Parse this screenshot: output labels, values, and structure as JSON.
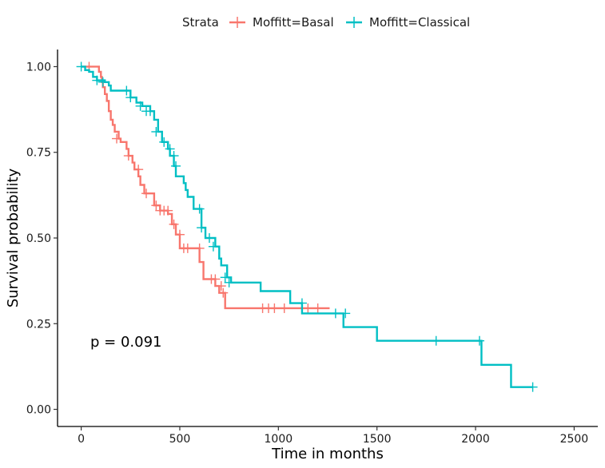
{
  "chart_data": {
    "type": "line",
    "xlabel": "Time in months",
    "ylabel": "Survival probability",
    "xlim": [
      -120,
      2620
    ],
    "ylim": [
      -0.05,
      1.05
    ],
    "xticks": [
      0,
      500,
      1000,
      1500,
      2000,
      2500
    ],
    "xtick_labels": [
      "0",
      "500",
      "1000",
      "1500",
      "2000",
      "2500"
    ],
    "yticks": [
      0,
      0.25,
      0.5,
      0.75,
      1.0
    ],
    "ytick_labels": [
      "0.00",
      "0.25",
      "0.50",
      "0.75",
      "1.00"
    ],
    "grid": false,
    "legend": {
      "position": "top",
      "title": "Strata"
    },
    "annotation": "p = 0.091",
    "series": [
      {
        "name": "Moffitt=Basal",
        "color": "#F8766D",
        "steps": [
          [
            0,
            1.0
          ],
          [
            50,
            1.0
          ],
          [
            90,
            0.985
          ],
          [
            100,
            0.97
          ],
          [
            105,
            0.955
          ],
          [
            110,
            0.94
          ],
          [
            120,
            0.92
          ],
          [
            130,
            0.9
          ],
          [
            140,
            0.87
          ],
          [
            150,
            0.845
          ],
          [
            160,
            0.83
          ],
          [
            170,
            0.81
          ],
          [
            190,
            0.79
          ],
          [
            200,
            0.78
          ],
          [
            230,
            0.76
          ],
          [
            240,
            0.74
          ],
          [
            260,
            0.72
          ],
          [
            270,
            0.7
          ],
          [
            290,
            0.68
          ],
          [
            300,
            0.655
          ],
          [
            320,
            0.63
          ],
          [
            370,
            0.595
          ],
          [
            400,
            0.58
          ],
          [
            440,
            0.57
          ],
          [
            460,
            0.54
          ],
          [
            480,
            0.51
          ],
          [
            500,
            0.47
          ],
          [
            600,
            0.43
          ],
          [
            620,
            0.38
          ],
          [
            680,
            0.36
          ],
          [
            700,
            0.34
          ],
          [
            730,
            0.295
          ],
          [
            1260,
            0.295
          ]
        ],
        "censor_x": [
          40,
          180,
          240,
          290,
          330,
          380,
          400,
          420,
          440,
          470,
          500,
          520,
          540,
          600,
          660,
          680,
          710,
          720,
          920,
          950,
          980,
          1030,
          1150,
          1200
        ],
        "censor_y": [
          1.0,
          0.79,
          0.74,
          0.7,
          0.63,
          0.595,
          0.58,
          0.58,
          0.58,
          0.54,
          0.51,
          0.47,
          0.47,
          0.47,
          0.38,
          0.38,
          0.36,
          0.34,
          0.295,
          0.295,
          0.295,
          0.295,
          0.295,
          0.295
        ]
      },
      {
        "name": "Moffitt=Classical",
        "color": "#00BFC4",
        "steps": [
          [
            0,
            1.0
          ],
          [
            20,
            0.99
          ],
          [
            40,
            0.985
          ],
          [
            60,
            0.97
          ],
          [
            80,
            0.96
          ],
          [
            120,
            0.955
          ],
          [
            140,
            0.945
          ],
          [
            150,
            0.93
          ],
          [
            250,
            0.91
          ],
          [
            280,
            0.895
          ],
          [
            310,
            0.885
          ],
          [
            350,
            0.87
          ],
          [
            370,
            0.845
          ],
          [
            390,
            0.81
          ],
          [
            410,
            0.78
          ],
          [
            440,
            0.76
          ],
          [
            450,
            0.74
          ],
          [
            470,
            0.71
          ],
          [
            480,
            0.68
          ],
          [
            520,
            0.66
          ],
          [
            530,
            0.64
          ],
          [
            540,
            0.62
          ],
          [
            570,
            0.585
          ],
          [
            610,
            0.53
          ],
          [
            630,
            0.5
          ],
          [
            680,
            0.475
          ],
          [
            700,
            0.44
          ],
          [
            710,
            0.42
          ],
          [
            740,
            0.385
          ],
          [
            760,
            0.37
          ],
          [
            910,
            0.345
          ],
          [
            1060,
            0.31
          ],
          [
            1120,
            0.28
          ],
          [
            1330,
            0.24
          ],
          [
            1500,
            0.2
          ],
          [
            2030,
            0.13
          ],
          [
            2180,
            0.065
          ],
          [
            2290,
            0.065
          ]
        ],
        "censor_x": [
          0,
          80,
          110,
          230,
          250,
          300,
          330,
          350,
          380,
          420,
          450,
          470,
          480,
          600,
          610,
          650,
          670,
          730,
          750,
          1120,
          1290,
          1340,
          1800,
          2020,
          2290
        ],
        "censor_y": [
          1.0,
          0.96,
          0.955,
          0.93,
          0.91,
          0.885,
          0.87,
          0.87,
          0.81,
          0.78,
          0.76,
          0.74,
          0.71,
          0.585,
          0.53,
          0.5,
          0.475,
          0.385,
          0.37,
          0.31,
          0.28,
          0.28,
          0.2,
          0.2,
          0.065
        ]
      }
    ]
  }
}
